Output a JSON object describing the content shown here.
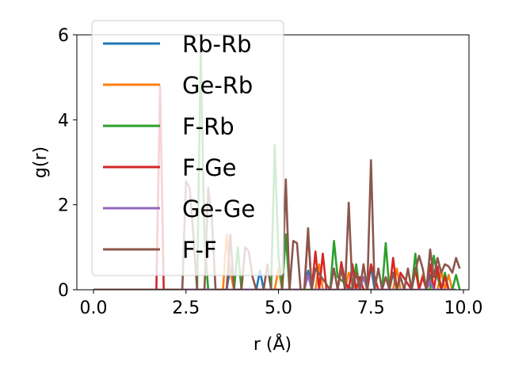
{
  "chart_data": {
    "type": "line",
    "title": "",
    "xlabel": "r (Å)",
    "ylabel": "g(r)",
    "xlim": [
      -0.45,
      10.15
    ],
    "ylim": [
      0,
      6
    ],
    "xticks": [
      0.0,
      2.5,
      5.0,
      7.5,
      10.0
    ],
    "xtick_labels": [
      "0.0",
      "2.5",
      "5.0",
      "7.5",
      "10.0"
    ],
    "yticks": [
      0,
      2,
      4,
      6
    ],
    "ytick_labels": [
      "0",
      "2",
      "4",
      "6"
    ],
    "grid": false,
    "legend_position": "upper-left",
    "series": [
      {
        "name": "Rb-Rb",
        "color": "#1f77b4",
        "x": [
          0,
          3.6,
          3.7,
          3.8,
          4.4,
          4.5,
          4.6,
          5.7,
          5.8,
          5.9,
          7.4,
          7.5,
          7.6,
          9.0,
          9.1,
          9.2,
          9.8
        ],
        "y": [
          0,
          0,
          0.55,
          0,
          0,
          0.45,
          0,
          0,
          0.45,
          0,
          0,
          0.55,
          0,
          0,
          0.35,
          0,
          0
        ]
      },
      {
        "name": "Ge-Rb",
        "color": "#ff7f0e",
        "x": [
          0,
          3.5,
          3.6,
          3.7,
          3.8,
          4.9,
          5.0,
          5.1,
          6.0,
          6.1,
          6.2,
          6.8,
          6.9,
          7.0,
          7.1,
          8.1,
          8.2,
          8.3,
          8.8,
          8.9,
          9.0,
          9.3,
          9.4,
          9.5,
          9.6,
          9.7,
          9.8
        ],
        "y": [
          0,
          0,
          1.3,
          0.4,
          0,
          0,
          0.5,
          0,
          0,
          0.6,
          0,
          0,
          0.4,
          0.2,
          0,
          0,
          0.5,
          0,
          0,
          0.35,
          0,
          0,
          0.45,
          0,
          0.35,
          0,
          0
        ]
      },
      {
        "name": "F-Rb",
        "color": "#2ca02c",
        "x": [
          0,
          2.8,
          2.9,
          3.0,
          3.1,
          3.8,
          3.9,
          4.0,
          4.8,
          4.9,
          5.0,
          5.1,
          5.2,
          5.3,
          5.4,
          6.4,
          6.5,
          6.6,
          7.0,
          7.1,
          7.2,
          7.8,
          7.9,
          8.0,
          8.6,
          8.7,
          8.8,
          9.1,
          9.2,
          9.3,
          9.4,
          9.5,
          9.6,
          9.7,
          9.8,
          9.9
        ],
        "y": [
          0,
          0,
          5.6,
          1.2,
          0,
          0,
          1.0,
          0,
          0,
          3.4,
          0.8,
          0,
          1.3,
          0,
          0,
          0,
          1.15,
          0.3,
          0,
          0.6,
          0,
          0,
          1.1,
          0,
          0,
          0.85,
          0,
          0,
          0.8,
          0.3,
          0,
          0.4,
          0,
          0,
          0.35,
          0
        ]
      },
      {
        "name": "F-Ge",
        "color": "#d62728",
        "x": [
          0,
          1.7,
          1.8,
          1.9,
          5.7,
          5.8,
          5.9,
          6.0,
          6.1,
          6.2,
          6.3,
          6.6,
          6.7,
          6.8,
          6.9,
          7.0,
          7.1,
          7.2,
          7.3,
          7.4,
          7.5,
          7.6,
          7.7,
          8.0,
          8.1,
          8.2,
          8.3,
          8.6,
          8.7,
          8.8,
          8.9,
          9.0,
          9.1,
          9.2,
          9.3,
          9.4,
          9.5,
          9.6,
          9.7
        ],
        "y": [
          0,
          0,
          4.8,
          0,
          0,
          1.35,
          0,
          0.9,
          0,
          0.85,
          0,
          0,
          0.65,
          0.2,
          0,
          0.6,
          0,
          0.3,
          0,
          0,
          0.6,
          0.3,
          0,
          0,
          0.75,
          0,
          0.4,
          0,
          0.5,
          0,
          0.3,
          0,
          0.6,
          0,
          0.55,
          0,
          0.3,
          0,
          0
        ]
      },
      {
        "name": "Ge-Ge",
        "color": "#9467bd",
        "x": [
          0,
          5.7,
          5.8,
          5.9,
          7.2,
          7.3,
          7.4,
          9.0,
          9.1,
          9.2,
          9.8
        ],
        "y": [
          0,
          0,
          0.35,
          0,
          0,
          0.3,
          0,
          0,
          0.2,
          0,
          0
        ]
      },
      {
        "name": "F-F",
        "color": "#8c564b",
        "x": [
          0,
          2.4,
          2.5,
          2.6,
          2.7,
          2.8,
          3.0,
          3.1,
          3.2,
          3.3,
          3.6,
          3.7,
          3.8,
          4.0,
          4.1,
          4.2,
          4.3,
          4.4,
          4.6,
          4.7,
          4.8,
          5.1,
          5.2,
          5.3,
          5.4,
          5.5,
          5.6,
          5.7,
          5.8,
          5.9,
          6.0,
          6.4,
          6.5,
          6.6,
          6.7,
          6.8,
          6.9,
          7.0,
          7.1,
          7.2,
          7.3,
          7.4,
          7.5,
          7.6,
          7.7,
          7.8,
          7.9,
          8.0,
          8.1,
          8.2,
          8.3,
          8.4,
          8.5,
          8.6,
          8.7,
          8.8,
          8.9,
          9.0,
          9.1,
          9.2,
          9.3,
          9.4,
          9.5,
          9.6,
          9.7,
          9.8,
          9.9
        ],
        "y": [
          0,
          0,
          2.55,
          2.4,
          1.3,
          0,
          0,
          2.4,
          1.7,
          0,
          0,
          1.3,
          0,
          0,
          1.0,
          0.9,
          0.3,
          0,
          0,
          0.6,
          0,
          0,
          2.6,
          0,
          1.15,
          1.1,
          0,
          0,
          1.45,
          0,
          0.5,
          0,
          0.5,
          0,
          0.5,
          0,
          2.05,
          0,
          0.4,
          0,
          0.6,
          0,
          3.05,
          0,
          0.5,
          0,
          0.3,
          0,
          0.4,
          0,
          0.3,
          0,
          0.5,
          0,
          0.45,
          0.8,
          0.5,
          0,
          0.95,
          0.3,
          0.75,
          0.4,
          0.6,
          0.55,
          0.4,
          0.75,
          0.5
        ]
      }
    ]
  }
}
